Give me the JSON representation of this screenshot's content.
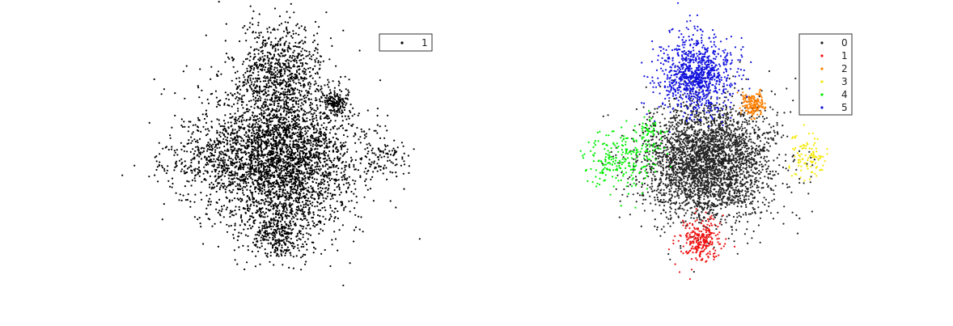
{
  "chart_data": [
    {
      "type": "scatter",
      "title": "",
      "xlabel": "",
      "ylabel": "",
      "axes_visible": false,
      "grid": false,
      "legend_position": "top-right",
      "series": [
        {
          "name": "1",
          "color": "#000000",
          "clusters": [
            {
              "cx": 345,
              "cy": 195,
              "sx": 48,
              "sy": 46,
              "n": 3600
            },
            {
              "cx": 345,
              "cy": 85,
              "sx": 25,
              "sy": 28,
              "n": 700
            },
            {
              "cx": 415,
              "cy": 128,
              "sx": 8,
              "sy": 6,
              "n": 160
            },
            {
              "cx": 240,
              "cy": 200,
              "sx": 28,
              "sy": 16,
              "n": 150
            },
            {
              "cx": 478,
              "cy": 195,
              "sx": 16,
              "sy": 14,
              "n": 90
            },
            {
              "cx": 345,
              "cy": 292,
              "sx": 16,
              "sy": 16,
              "n": 280
            }
          ]
        }
      ]
    },
    {
      "type": "scatter",
      "title": "",
      "xlabel": "",
      "ylabel": "",
      "axes_visible": false,
      "grid": false,
      "legend_position": "top-right",
      "series": [
        {
          "name": "0",
          "color": "#222222",
          "clusters": [
            {
              "cx": 875,
              "cy": 200,
              "sx": 40,
              "sy": 36,
              "n": 3200
            }
          ]
        },
        {
          "name": "1",
          "color": "#ee1111",
          "clusters": [
            {
              "cx": 868,
              "cy": 295,
              "sx": 13,
              "sy": 13,
              "n": 260
            }
          ]
        },
        {
          "name": "2",
          "color": "#ff7f00",
          "clusters": [
            {
              "cx": 932,
              "cy": 128,
              "sx": 7,
              "sy": 7,
              "n": 170
            }
          ]
        },
        {
          "name": "3",
          "color": "#f5e800",
          "clusters": [
            {
              "cx": 998,
              "cy": 197,
              "sx": 13,
              "sy": 14,
              "n": 100
            }
          ]
        },
        {
          "name": "4",
          "color": "#00ee00",
          "clusters": [
            {
              "cx": 768,
              "cy": 198,
              "sx": 22,
              "sy": 18,
              "n": 230
            },
            {
              "cx": 805,
              "cy": 165,
              "sx": 10,
              "sy": 10,
              "n": 60
            }
          ]
        },
        {
          "name": "5",
          "color": "#1111dd",
          "clusters": [
            {
              "cx": 862,
              "cy": 93,
              "sx": 22,
              "sy": 24,
              "n": 950
            }
          ]
        }
      ]
    }
  ]
}
